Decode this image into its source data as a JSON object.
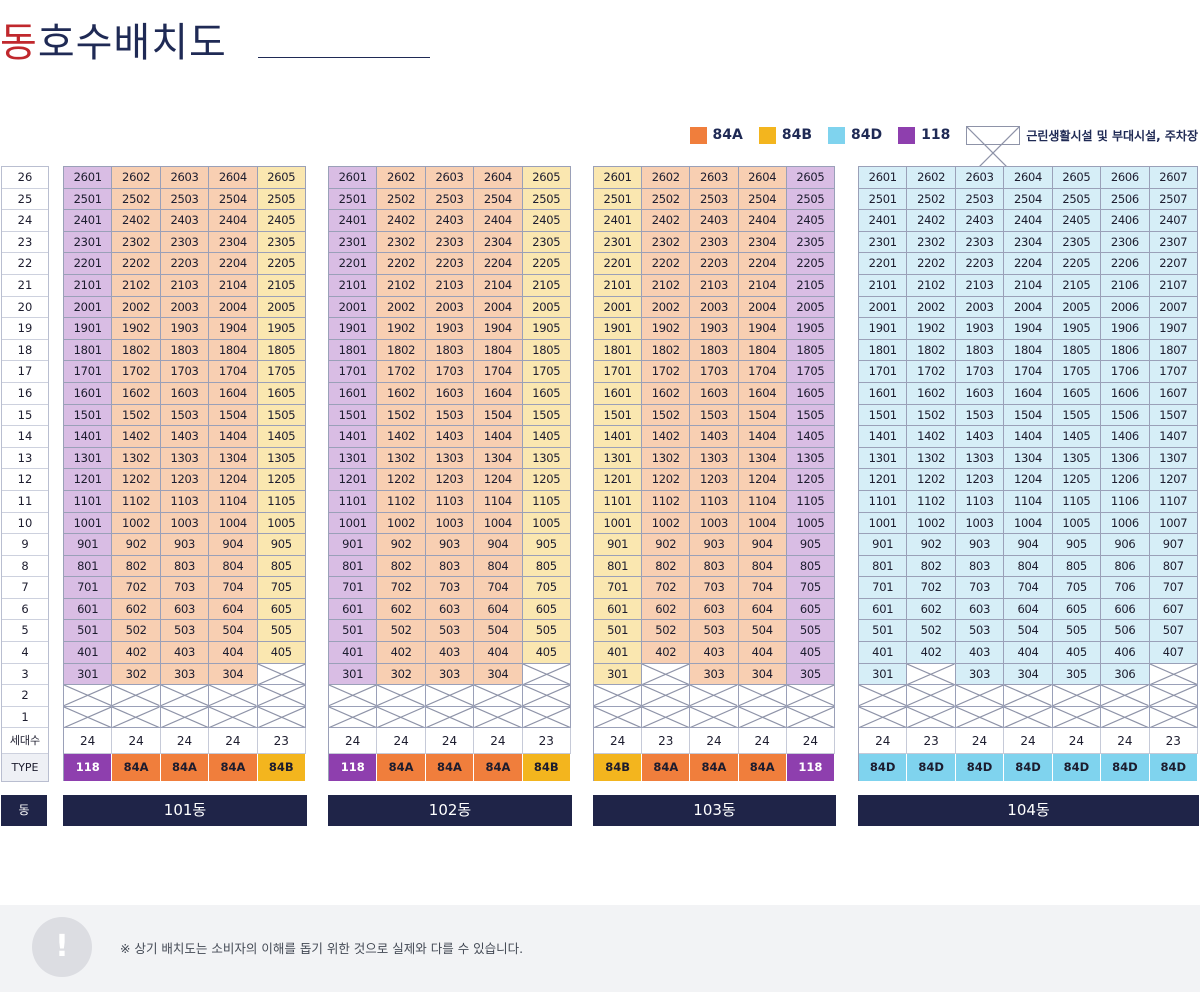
{
  "page": {
    "title_first": "동",
    "title_rest": "호수배치도"
  },
  "legend": {
    "items": [
      {
        "label": "84A",
        "color": "#f07e3c"
      },
      {
        "label": "84B",
        "color": "#f3b51e"
      },
      {
        "label": "84D",
        "color": "#7fd3ee"
      },
      {
        "label": "118",
        "color": "#8e3fae"
      }
    ],
    "facility_label": "근린생활시설 및 부대시설, 주차장"
  },
  "floor_column": {
    "floors": [
      "26",
      "25",
      "24",
      "23",
      "22",
      "21",
      "20",
      "19",
      "18",
      "17",
      "16",
      "15",
      "14",
      "13",
      "12",
      "11",
      "10",
      "9",
      "8",
      "7",
      "6",
      "5",
      "4",
      "3",
      "2",
      "1"
    ],
    "count_label": "세대수",
    "type_label": "TYPE",
    "dong_label": "동"
  },
  "buildings": [
    {
      "name": "101동",
      "lines": [
        "01",
        "02",
        "03",
        "04",
        "05"
      ],
      "types": [
        "118",
        "84A",
        "84A",
        "84A",
        "84B"
      ],
      "households": [
        "24",
        "24",
        "24",
        "24",
        "23"
      ],
      "empty_units": [
        "305"
      ]
    },
    {
      "name": "102동",
      "lines": [
        "01",
        "02",
        "03",
        "04",
        "05"
      ],
      "types": [
        "118",
        "84A",
        "84A",
        "84A",
        "84B"
      ],
      "households": [
        "24",
        "24",
        "24",
        "24",
        "23"
      ],
      "empty_units": [
        "305"
      ]
    },
    {
      "name": "103동",
      "lines": [
        "01",
        "02",
        "03",
        "04",
        "05"
      ],
      "types": [
        "84B",
        "84A",
        "84A",
        "84A",
        "118"
      ],
      "households": [
        "24",
        "23",
        "24",
        "24",
        "24"
      ],
      "empty_units": [
        "302"
      ]
    },
    {
      "name": "104동",
      "lines": [
        "01",
        "02",
        "03",
        "04",
        "05",
        "06",
        "07"
      ],
      "types": [
        "84D",
        "84D",
        "84D",
        "84D",
        "84D",
        "84D",
        "84D"
      ],
      "type_labels": [
        "84D",
        "84D",
        "84D",
        "84D",
        "84D",
        "84D",
        "84D"
      ],
      "households": [
        "24",
        "23",
        "24",
        "24",
        "24",
        "24",
        "23"
      ],
      "empty_units": [
        "302",
        "307"
      ]
    }
  ],
  "notice": {
    "icon": "exclamation-icon",
    "icon_glyph": "!",
    "text": "※ 상기 배치도는 소비자의 이해를 돕기 위한 것으로 실제와 다를 수 있습니다."
  }
}
